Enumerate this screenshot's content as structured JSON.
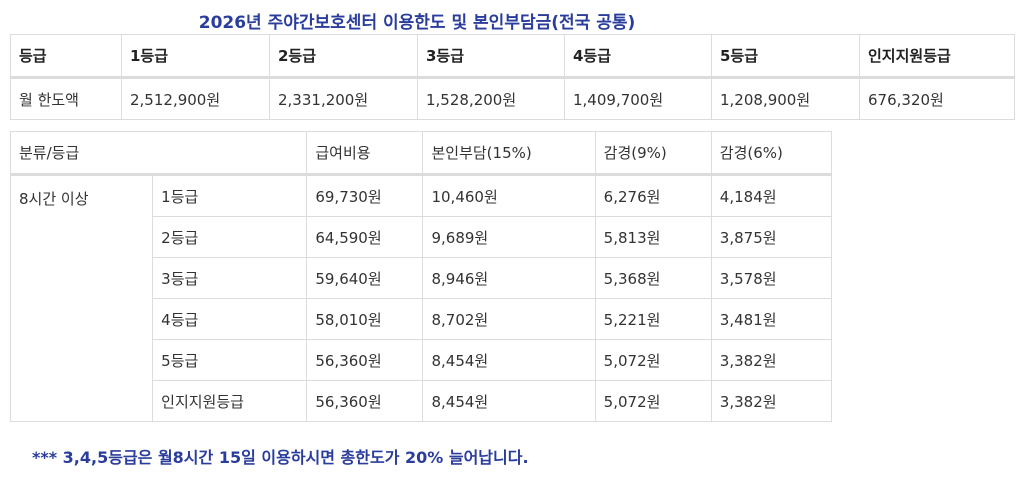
{
  "title": "2026년 주야간보호센터 이용한도 및 본인부담금(전국 공통)",
  "limit_table": {
    "headers": [
      "등급",
      "1등급",
      "2등급",
      "3등급",
      "4등급",
      "5등급",
      "인지지원등급"
    ],
    "row_label": "월 한도액",
    "values": [
      "2,512,900원",
      "2,331,200원",
      "1,528,200원",
      "1,409,700원",
      "1,208,900원",
      "676,320원"
    ]
  },
  "cost_table": {
    "headers": [
      "분류/등급",
      "급여비용",
      "본인부담(15%)",
      "감경(9%)",
      "감경(6%)"
    ],
    "category": "8시간 이상",
    "rows": [
      {
        "grade": "1등급",
        "cost": "69,730원",
        "copay15": "10,460원",
        "red9": "6,276원",
        "red6": "4,184원"
      },
      {
        "grade": "2등급",
        "cost": "64,590원",
        "copay15": "9,689원",
        "red9": "5,813원",
        "red6": "3,875원"
      },
      {
        "grade": "3등급",
        "cost": "59,640원",
        "copay15": "8,946원",
        "red9": "5,368원",
        "red6": "3,578원"
      },
      {
        "grade": "4등급",
        "cost": "58,010원",
        "copay15": "8,702원",
        "red9": "5,221원",
        "red6": "3,481원"
      },
      {
        "grade": "5등급",
        "cost": "56,360원",
        "copay15": "8,454원",
        "red9": "5,072원",
        "red6": "3,382원"
      },
      {
        "grade": "인지지원등급",
        "cost": "56,360원",
        "copay15": "8,454원",
        "red9": "5,072원",
        "red6": "3,382원"
      }
    ]
  },
  "note": "*** 3,4,5등급은 월8시간 15일 이용하시면 총한도가 20% 늘어납니다."
}
